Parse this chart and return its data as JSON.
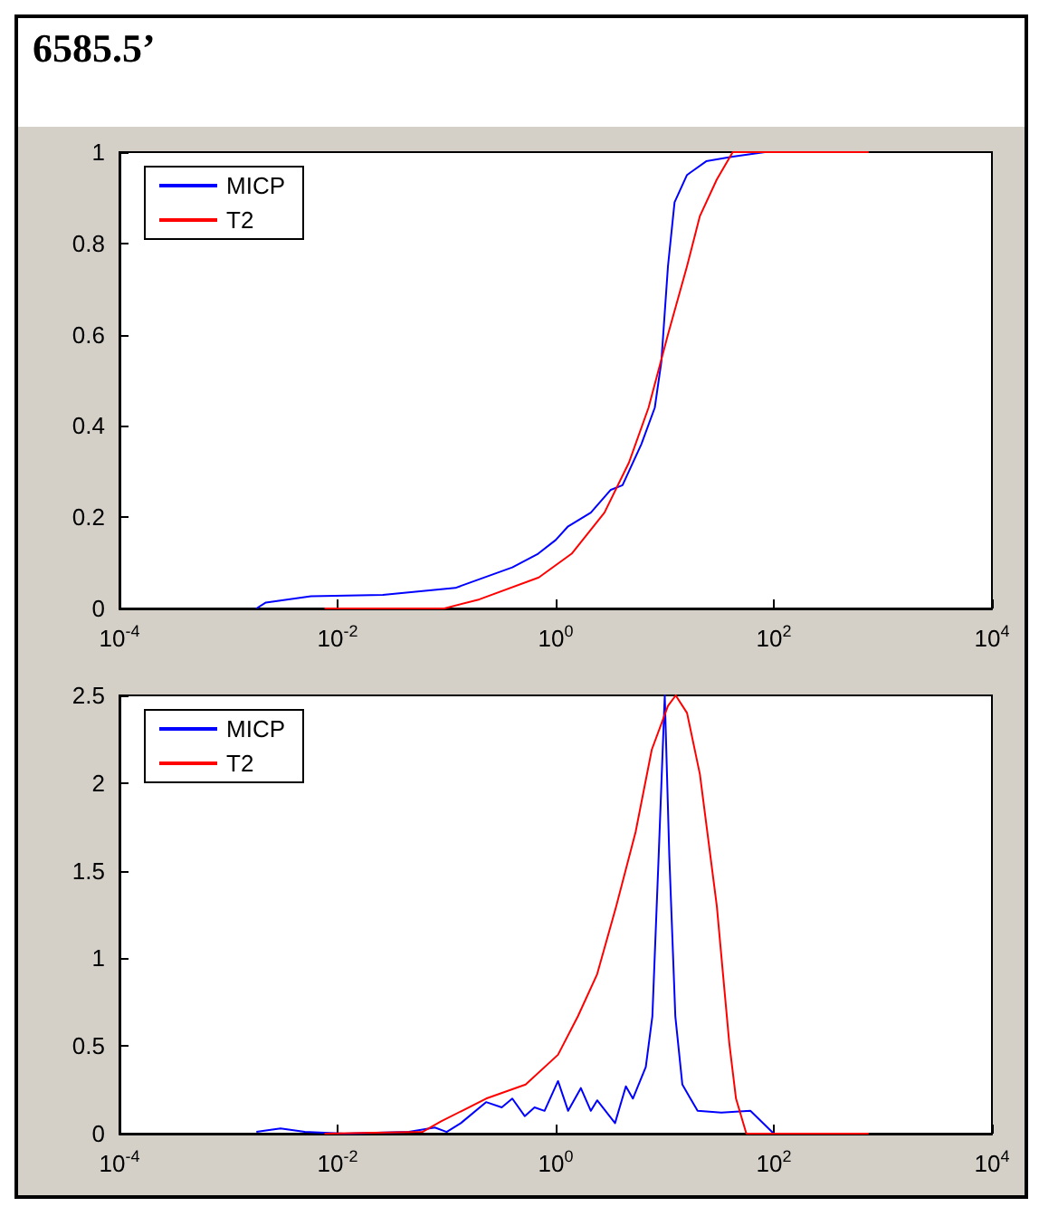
{
  "chart_data": [
    {
      "type": "line",
      "title": "6585.5’",
      "log": "x",
      "legend": "top left",
      "grid": false,
      "xlim": [
        0.0001,
        10000
      ],
      "xticks": [
        {
          "value": 0.0001,
          "label": "10$^{-4}$"
        },
        {
          "value": 0.01,
          "label": "10$^{-2}$"
        },
        {
          "value": 1,
          "label": "10$^{0}$"
        },
        {
          "value": 100,
          "label": "10$^{2}$"
        },
        {
          "value": 10000,
          "label": "10$^{4}$"
        }
      ],
      "ylim": [
        0,
        1
      ],
      "yticks": [
        0,
        0.2,
        0.4,
        0.6,
        0.8,
        1
      ],
      "series": [
        {
          "name": "MICP",
          "color": "#0000ff",
          "x": [
            0.0018,
            0.0022,
            0.0057,
            0.026,
            0.12,
            0.4,
            0.69,
            1,
            1.3,
            2.1,
            3.2,
            4.1,
            6.1,
            8.1,
            9.3,
            10.7,
            12.3,
            16,
            24,
            42,
            83
          ],
          "values": [
            0,
            0.013,
            0.027,
            0.03,
            0.045,
            0.09,
            0.12,
            0.15,
            0.18,
            0.21,
            0.26,
            0.27,
            0.36,
            0.44,
            0.54,
            0.75,
            0.89,
            0.95,
            0.98,
            0.99,
            1
          ]
        },
        {
          "name": "T2",
          "color": "#ff0000",
          "x": [
            0.0076,
            0.095,
            0.2,
            0.7,
            1.4,
            2.8,
            4.7,
            7.1,
            10.7,
            16,
            21,
            30,
            42,
            740
          ],
          "values": [
            0,
            0,
            0.02,
            0.068,
            0.12,
            0.21,
            0.32,
            0.44,
            0.6,
            0.75,
            0.86,
            0.94,
            1,
            1
          ]
        }
      ]
    },
    {
      "type": "line",
      "log": "x",
      "legend": "top left",
      "grid": false,
      "xlim": [
        0.0001,
        10000
      ],
      "xticks": [
        {
          "value": 0.0001,
          "label": "10$^{-4}$"
        },
        {
          "value": 0.01,
          "label": "10$^{-2}$"
        },
        {
          "value": 1,
          "label": "10$^{0}$"
        },
        {
          "value": 100,
          "label": "10$^{2}$"
        },
        {
          "value": 10000,
          "label": "10$^{4}$"
        }
      ],
      "ylim": [
        0,
        2.5
      ],
      "yticks": [
        0,
        0.5,
        1,
        1.5,
        2,
        2.5
      ],
      "series": [
        {
          "name": "MICP",
          "color": "#0000ff",
          "x": [
            0.0018,
            0.003,
            0.005,
            0.0115,
            0.045,
            0.078,
            0.1,
            0.135,
            0.23,
            0.32,
            0.4,
            0.52,
            0.64,
            0.79,
            1.05,
            1.3,
            1.7,
            2.1,
            2.4,
            3.5,
            4.4,
            5.1,
            6.7,
            7.7,
            8.8,
            10,
            11,
            12.5,
            14.5,
            20,
            33,
            61,
            100
          ],
          "values": [
            0.01,
            0.03,
            0.01,
            0,
            0.01,
            0.035,
            0.01,
            0.06,
            0.18,
            0.15,
            0.2,
            0.1,
            0.15,
            0.13,
            0.3,
            0.13,
            0.26,
            0.13,
            0.19,
            0.06,
            0.27,
            0.2,
            0.38,
            0.67,
            1.59,
            2.5,
            1.59,
            0.67,
            0.28,
            0.13,
            0.12,
            0.13,
            0
          ]
        },
        {
          "name": "T2",
          "color": "#ff0000",
          "x": [
            0.0076,
            0.06,
            0.089,
            0.23,
            0.53,
            1.05,
            1.6,
            2.4,
            3.6,
            5.4,
            7.6,
            10.7,
            12.6,
            16,
            21,
            30,
            39,
            45,
            56,
            740
          ],
          "values": [
            0,
            0.01,
            0.07,
            0.2,
            0.28,
            0.45,
            0.67,
            0.91,
            1.3,
            1.72,
            2.19,
            2.44,
            2.5,
            2.4,
            2.05,
            1.3,
            0.52,
            0.2,
            0,
            0
          ]
        }
      ]
    }
  ]
}
